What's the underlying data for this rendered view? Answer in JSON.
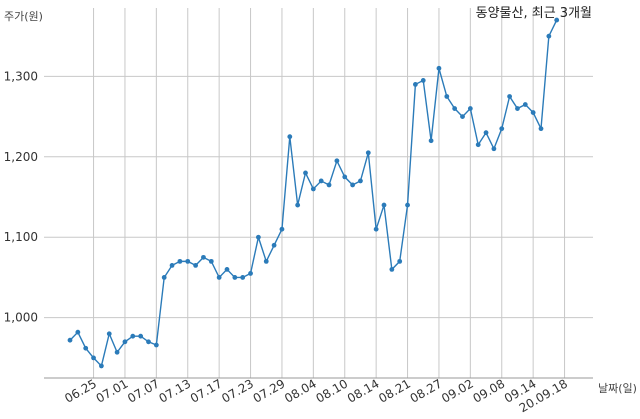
{
  "chart_data": {
    "type": "line",
    "title": "동양물산, 최근 3개월",
    "ylabel": "주가(원)",
    "xlabel": "날짜(일)",
    "ylim": [
      925,
      1385
    ],
    "yticks": [
      1000,
      1100,
      1200,
      1300
    ],
    "ytick_labels": [
      "1,000",
      "1,100",
      "1,200",
      "1,300"
    ],
    "x_tick_labels": [
      "06.25",
      "07.01",
      "07.07",
      "07.13",
      "07.17",
      "07.23",
      "07.29",
      "08.04",
      "08.10",
      "08.14",
      "08.21",
      "08.27",
      "09.02",
      "09.08",
      "09.14",
      "20.09.18"
    ],
    "x_tick_index": [
      3,
      7,
      11,
      15,
      19,
      23,
      27,
      31,
      35,
      39,
      43,
      47,
      51,
      55,
      59,
      63
    ],
    "grid": true,
    "line_color": "#2b7bb9",
    "series": [
      {
        "values": [
          972,
          982,
          962,
          950,
          940,
          980,
          957,
          970,
          977,
          977,
          970,
          966,
          1050,
          1065,
          1070,
          1070,
          1065,
          1075,
          1070,
          1050,
          1060,
          1050,
          1050,
          1055,
          1100,
          1070,
          1090,
          1110,
          1225,
          1140,
          1180,
          1160,
          1170,
          1165,
          1195,
          1175,
          1165,
          1170,
          1205,
          1110,
          1140,
          1060,
          1070,
          1140,
          1290,
          1295,
          1220,
          1310,
          1275,
          1260,
          1250,
          1260,
          1215,
          1230,
          1210,
          1235,
          1275,
          1260,
          1265,
          1255,
          1235,
          1350,
          1370
        ]
      }
    ]
  }
}
